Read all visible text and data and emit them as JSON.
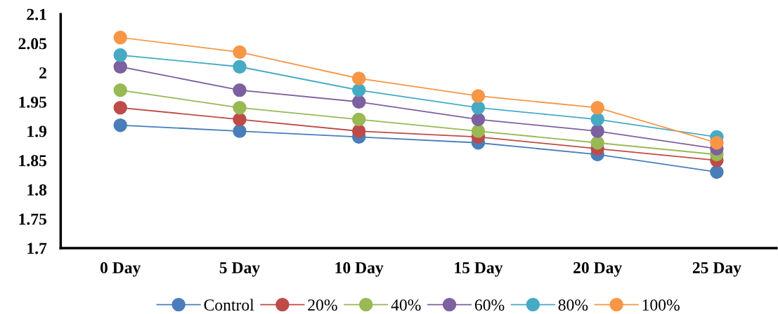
{
  "chart_data": {
    "type": "line",
    "categories": [
      "0 Day",
      "5 Day",
      "10 Day",
      "15 Day",
      "20 Day",
      "25 Day"
    ],
    "ylim": [
      1.7,
      2.1
    ],
    "yticks": [
      1.7,
      1.75,
      1.8,
      1.85,
      1.9,
      1.95,
      2,
      2.05,
      2.1
    ],
    "grid": false,
    "legend": "bottom",
    "marker": "circle",
    "line_style": "solid",
    "series": [
      {
        "name": "Control",
        "color": "#4a7ebb",
        "values": [
          1.91,
          1.9,
          1.89,
          1.88,
          1.86,
          1.83
        ]
      },
      {
        "name": "20%",
        "color": "#be4b48",
        "values": [
          1.94,
          1.92,
          1.9,
          1.89,
          1.87,
          1.85
        ]
      },
      {
        "name": "40%",
        "color": "#98b954",
        "values": [
          1.97,
          1.94,
          1.92,
          1.9,
          1.88,
          1.86
        ]
      },
      {
        "name": "60%",
        "color": "#7d60a0",
        "values": [
          2.01,
          1.97,
          1.95,
          1.92,
          1.9,
          1.87
        ]
      },
      {
        "name": "80%",
        "color": "#46aac5",
        "values": [
          2.03,
          2.01,
          1.97,
          1.94,
          1.92,
          1.89
        ]
      },
      {
        "name": "100%",
        "color": "#f79646",
        "values": [
          2.06,
          2.035,
          1.99,
          1.96,
          1.94,
          1.88
        ]
      }
    ]
  }
}
